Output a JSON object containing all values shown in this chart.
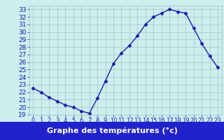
{
  "hours": [
    0,
    1,
    2,
    3,
    4,
    5,
    6,
    7,
    8,
    9,
    10,
    11,
    12,
    13,
    14,
    15,
    16,
    17,
    18,
    19,
    20,
    21,
    22,
    23
  ],
  "temps": [
    22.5,
    22.0,
    21.3,
    20.8,
    20.3,
    20.0,
    19.5,
    19.2,
    21.2,
    23.5,
    25.8,
    27.2,
    28.2,
    29.5,
    31.0,
    32.0,
    32.5,
    33.0,
    32.7,
    32.5,
    30.5,
    28.5,
    26.8,
    25.3
  ],
  "line_color": "#1a1aaa",
  "marker": "D",
  "marker_size": 2.5,
  "bg_color": "#cceeee",
  "plot_bg_color": "#cceeee",
  "grid_color": "#99bbbb",
  "xlabel": "Graphe des températures (°c)",
  "xlabel_bg": "#2222cc",
  "xlabel_color": "#ffffff",
  "ylim": [
    19,
    33.5
  ],
  "yticks": [
    19,
    20,
    21,
    22,
    23,
    24,
    25,
    26,
    27,
    28,
    29,
    30,
    31,
    32,
    33
  ],
  "xtick_labels": [
    "0",
    "1",
    "2",
    "3",
    "4",
    "5",
    "6",
    "7",
    "8",
    "9",
    "10",
    "11",
    "12",
    "13",
    "14",
    "15",
    "16",
    "17",
    "18",
    "19",
    "20",
    "21",
    "22",
    "23"
  ],
  "tick_fontsize": 6.5,
  "xlabel_fontsize": 8,
  "linewidth": 1.0
}
